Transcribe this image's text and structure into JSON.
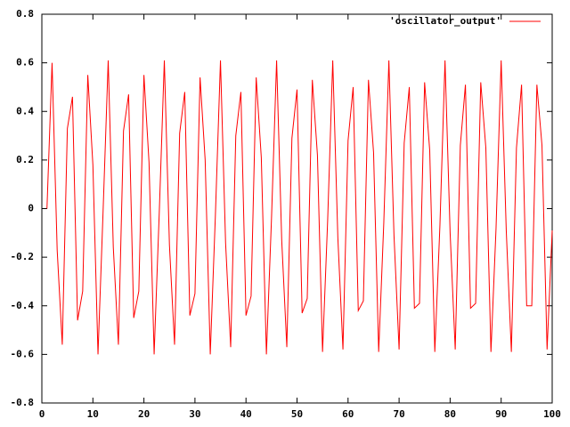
{
  "chart_data": {
    "type": "line",
    "x": [
      1,
      2,
      3,
      4,
      5,
      6,
      7,
      8,
      9,
      10,
      11,
      12,
      13,
      14,
      15,
      16,
      17,
      18,
      19,
      20,
      21,
      22,
      23,
      24,
      25,
      26,
      27,
      28,
      29,
      30,
      31,
      32,
      33,
      34,
      35,
      36,
      37,
      38,
      39,
      40,
      41,
      42,
      43,
      44,
      45,
      46,
      47,
      48,
      49,
      50,
      51,
      52,
      53,
      54,
      55,
      56,
      57,
      58,
      59,
      60,
      61,
      62,
      63,
      64,
      65,
      66,
      67,
      68,
      69,
      70,
      71,
      72,
      73,
      74,
      75,
      76,
      77,
      78,
      79,
      80,
      81,
      82,
      83,
      84,
      85,
      86,
      87,
      88,
      89,
      90,
      91,
      92,
      93,
      94,
      95,
      96,
      97,
      98,
      99,
      100
    ],
    "series": [
      {
        "name": "'oscillator_output'",
        "color": "#ff0000",
        "values": [
          0,
          0.6,
          -0.17,
          -0.56,
          0.33,
          0.46,
          -0.46,
          -0.34,
          0.55,
          0.18,
          -0.6,
          -0.01,
          0.61,
          -0.16,
          -0.56,
          0.32,
          0.47,
          -0.45,
          -0.34,
          0.55,
          0.19,
          -0.6,
          -0.02,
          0.61,
          -0.15,
          -0.56,
          0.31,
          0.48,
          -0.44,
          -0.35,
          0.54,
          0.2,
          -0.6,
          -0.03,
          0.61,
          -0.14,
          -0.57,
          0.3,
          0.48,
          -0.44,
          -0.36,
          0.54,
          0.21,
          -0.6,
          -0.04,
          0.61,
          -0.13,
          -0.57,
          0.29,
          0.49,
          -0.43,
          -0.37,
          0.53,
          0.22,
          -0.59,
          -0.05,
          0.61,
          -0.12,
          -0.58,
          0.28,
          0.5,
          -0.42,
          -0.38,
          0.53,
          0.23,
          -0.59,
          -0.06,
          0.61,
          -0.11,
          -0.58,
          0.27,
          0.5,
          -0.41,
          -0.39,
          0.52,
          0.24,
          -0.59,
          -0.07,
          0.61,
          -0.1,
          -0.58,
          0.26,
          0.51,
          -0.41,
          -0.39,
          0.52,
          0.25,
          -0.59,
          -0.08,
          0.61,
          -0.09,
          -0.59,
          0.25,
          0.51,
          -0.4,
          -0.4,
          0.51,
          0.26,
          -0.58,
          -0.09
        ]
      }
    ],
    "xlim": [
      0,
      100
    ],
    "xticks": [
      0,
      10,
      20,
      30,
      40,
      50,
      60,
      70,
      80,
      90,
      100
    ],
    "ylim": [
      -0.8,
      0.8
    ],
    "yticks": [
      -0.8,
      -0.6,
      -0.4,
      -0.2,
      0,
      0.2,
      0.4,
      0.6,
      0.8
    ],
    "legend": "top-right"
  }
}
